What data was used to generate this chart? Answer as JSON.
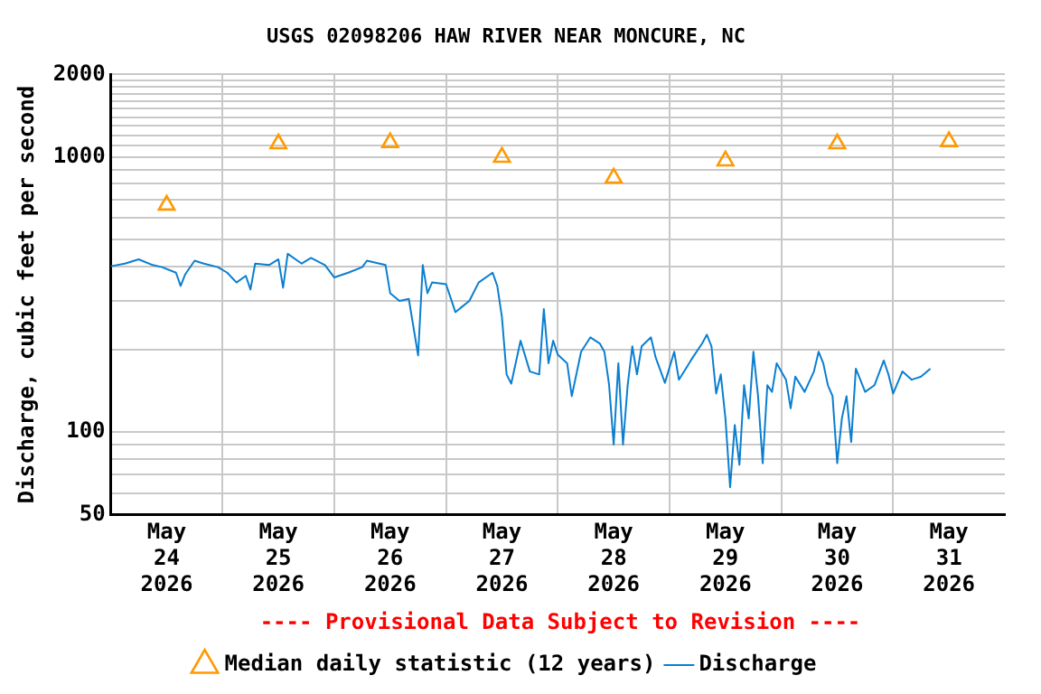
{
  "chart_data": {
    "type": "line",
    "title": "USGS 02098206 HAW RIVER NEAR MONCURE, NC",
    "ylabel": "Discharge, cubic feet per second",
    "annotations": [
      "---- Provisional Data Subject to Revision ----"
    ],
    "log": "y",
    "grid": true,
    "legend": "bottom",
    "xlim": [
      "2026-05-24T00:00",
      "2026-06-01T00:00"
    ],
    "xticks": [
      {
        "value": "2026-05-25T00:00",
        "label": null
      },
      {
        "value": "2026-05-26T00:00",
        "label": null
      },
      {
        "value": "2026-05-27T00:00",
        "label": null
      },
      {
        "value": "2026-05-28T00:00",
        "label": null
      },
      {
        "value": "2026-05-29T00:00",
        "label": null
      },
      {
        "value": "2026-05-30T00:00",
        "label": null
      },
      {
        "value": "2026-05-31T00:00",
        "label": null
      },
      {
        "value": "2026-05-24T12:00",
        "label": "May 24 2026"
      },
      {
        "value": "2026-05-25T12:00",
        "label": "May 25 2026"
      },
      {
        "value": "2026-05-26T12:00",
        "label": "May 26 2026"
      },
      {
        "value": "2026-05-27T12:00",
        "label": "May 27 2026"
      },
      {
        "value": "2026-05-28T12:00",
        "label": "May 28 2026"
      },
      {
        "value": "2026-05-29T12:00",
        "label": "May 29 2026"
      },
      {
        "value": "2026-05-30T12:00",
        "label": "May 30 2026"
      },
      {
        "value": "2026-05-31T12:00",
        "label": "May 31 2026"
      }
    ],
    "ylim": [
      50,
      2000
    ],
    "yticks": [
      50,
      {
        "value": 60,
        "label": null
      },
      {
        "value": 70,
        "label": null
      },
      {
        "value": 80,
        "label": null
      },
      {
        "value": 90,
        "label": null
      },
      100,
      {
        "value": 200,
        "label": null
      },
      {
        "value": 300,
        "label": null
      },
      {
        "value": 400,
        "label": null
      },
      {
        "value": 500,
        "label": null
      },
      {
        "value": 600,
        "label": null
      },
      {
        "value": 700,
        "label": null
      },
      {
        "value": 800,
        "label": null
      },
      {
        "value": 900,
        "label": null
      },
      1000,
      {
        "value": 1100,
        "label": null
      },
      {
        "value": 1200,
        "label": null
      },
      {
        "value": 1300,
        "label": null
      },
      {
        "value": 1400,
        "label": null
      },
      {
        "value": 1500,
        "label": null
      },
      {
        "value": 1600,
        "label": null
      },
      {
        "value": 1700,
        "label": null
      },
      {
        "value": 1800,
        "label": null
      },
      {
        "value": 1900,
        "label": null
      },
      2000
    ],
    "series": [
      {
        "name": "Median daily statistic (12 years)",
        "type": "scatter",
        "marker": "triangle",
        "color": "#ff9900",
        "x": [
          "2026-05-24T12:00",
          "2026-05-25T12:00",
          "2026-05-26T12:00",
          "2026-05-27T12:00",
          "2026-05-28T12:00",
          "2026-05-29T12:00",
          "2026-05-30T12:00",
          "2026-05-31T12:00"
        ],
        "values": [
          670,
          1120,
          1130,
          1000,
          840,
          970,
          1120,
          1140
        ]
      },
      {
        "name": "Discharge",
        "type": "line",
        "marker": "none",
        "color": "#0a7fd0",
        "x": [
          "2026-05-24T00:00",
          "2026-05-24T03:00",
          "2026-05-24T06:00",
          "2026-05-24T09:00",
          "2026-05-24T11:00",
          "2026-05-24T14:00",
          "2026-05-24T15:00",
          "2026-05-24T16:00",
          "2026-05-24T18:00",
          "2026-05-24T20:00",
          "2026-05-24T23:00",
          "2026-05-25T01:00",
          "2026-05-25T03:00",
          "2026-05-25T05:00",
          "2026-05-25T06:00",
          "2026-05-25T07:00",
          "2026-05-25T10:00",
          "2026-05-25T12:00",
          "2026-05-25T13:00",
          "2026-05-25T14:00",
          "2026-05-25T17:00",
          "2026-05-25T19:00",
          "2026-05-25T22:00",
          "2026-05-26T00:00",
          "2026-05-26T03:00",
          "2026-05-26T06:00",
          "2026-05-26T07:00",
          "2026-05-26T11:00",
          "2026-05-26T12:00",
          "2026-05-26T14:00",
          "2026-05-26T16:00",
          "2026-05-26T18:00",
          "2026-05-26T19:00",
          "2026-05-26T20:00",
          "2026-05-26T21:00",
          "2026-05-27T00:00",
          "2026-05-27T02:00",
          "2026-05-27T05:00",
          "2026-05-27T07:00",
          "2026-05-27T10:00",
          "2026-05-27T11:00",
          "2026-05-27T12:00",
          "2026-05-27T13:00",
          "2026-05-27T14:00",
          "2026-05-27T16:00",
          "2026-05-27T18:00",
          "2026-05-27T20:00",
          "2026-05-27T21:00",
          "2026-05-27T22:00",
          "2026-05-27T23:00",
          "2026-05-28T00:00",
          "2026-05-28T02:00",
          "2026-05-28T03:00",
          "2026-05-28T05:00",
          "2026-05-28T07:00",
          "2026-05-28T09:00",
          "2026-05-28T10:00",
          "2026-05-28T11:00",
          "2026-05-28T12:00",
          "2026-05-28T13:00",
          "2026-05-28T14:00",
          "2026-05-28T15:00",
          "2026-05-28T16:00",
          "2026-05-28T17:00",
          "2026-05-28T18:00",
          "2026-05-28T20:00",
          "2026-05-28T21:00",
          "2026-05-28T23:00",
          "2026-05-29T01:00",
          "2026-05-29T02:00",
          "2026-05-29T05:00",
          "2026-05-29T07:00",
          "2026-05-29T08:00",
          "2026-05-29T09:00",
          "2026-05-29T10:00",
          "2026-05-29T11:00",
          "2026-05-29T12:00",
          "2026-05-29T13:00",
          "2026-05-29T14:00",
          "2026-05-29T15:00",
          "2026-05-29T16:00",
          "2026-05-29T17:00",
          "2026-05-29T18:00",
          "2026-05-29T19:00",
          "2026-05-29T20:00",
          "2026-05-29T21:00",
          "2026-05-29T22:00",
          "2026-05-29T23:00",
          "2026-05-30T01:00",
          "2026-05-30T02:00",
          "2026-05-30T03:00",
          "2026-05-30T05:00",
          "2026-05-30T07:00",
          "2026-05-30T08:00",
          "2026-05-30T09:00",
          "2026-05-30T10:00",
          "2026-05-30T11:00",
          "2026-05-30T12:00",
          "2026-05-30T13:00",
          "2026-05-30T14:00",
          "2026-05-30T15:00",
          "2026-05-30T16:00",
          "2026-05-30T18:00",
          "2026-05-30T20:00",
          "2026-05-30T22:00",
          "2026-05-30T23:00",
          "2026-05-31T00:00",
          "2026-05-31T02:00",
          "2026-05-31T04:00",
          "2026-05-31T06:00",
          "2026-05-31T08:00"
        ],
        "values": [
          401,
          410,
          425,
          405,
          398,
          380,
          340,
          375,
          420,
          410,
          398,
          380,
          350,
          370,
          330,
          410,
          405,
          425,
          335,
          445,
          410,
          430,
          405,
          365,
          380,
          398,
          420,
          405,
          320,
          300,
          305,
          190,
          405,
          320,
          350,
          345,
          273,
          300,
          350,
          380,
          340,
          262,
          162,
          150,
          215,
          166,
          162,
          280,
          178,
          215,
          191,
          178,
          135,
          196,
          221,
          210,
          196,
          149,
          90,
          178,
          90,
          148,
          205,
          162,
          205,
          221,
          187,
          151,
          196,
          155,
          187,
          210,
          226,
          205,
          138,
          162,
          112,
          63,
          106,
          76,
          148,
          112,
          196,
          135,
          77,
          148,
          140,
          178,
          155,
          122,
          159,
          140,
          166,
          196,
          178,
          148,
          135,
          77,
          112,
          135,
          92,
          170,
          140,
          148,
          182,
          162,
          138,
          166,
          155,
          159,
          170
        ]
      }
    ]
  }
}
